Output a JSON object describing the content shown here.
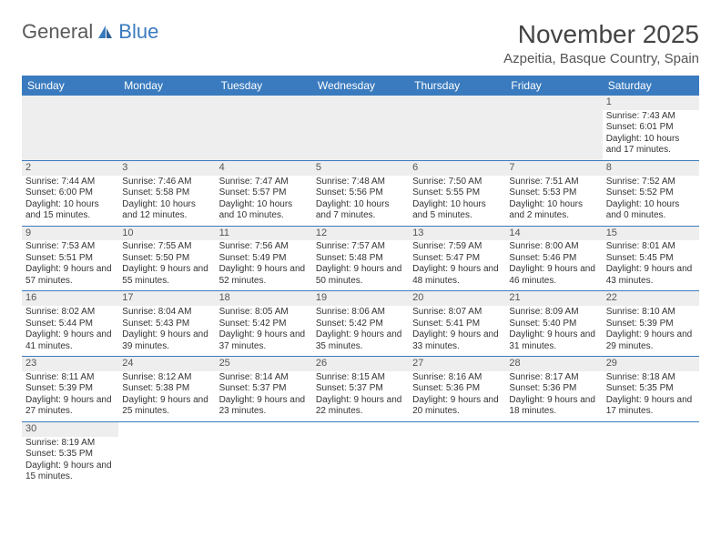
{
  "logo": {
    "text1": "General",
    "text2": "Blue"
  },
  "title": "November 2025",
  "location": "Azpeitia, Basque Country, Spain",
  "colors": {
    "headerBg": "#3a7bbf",
    "headerText": "#ffffff",
    "border": "#3a7bbf",
    "logoAccent": "#3a7bbf",
    "shade": "#eeeeee"
  },
  "weekdays": [
    "Sunday",
    "Monday",
    "Tuesday",
    "Wednesday",
    "Thursday",
    "Friday",
    "Saturday"
  ],
  "weeks": [
    [
      null,
      null,
      null,
      null,
      null,
      null,
      {
        "n": "1",
        "sunrise": "7:43 AM",
        "sunset": "6:01 PM",
        "daylight": "10 hours and 17 minutes."
      }
    ],
    [
      {
        "n": "2",
        "sunrise": "7:44 AM",
        "sunset": "6:00 PM",
        "daylight": "10 hours and 15 minutes."
      },
      {
        "n": "3",
        "sunrise": "7:46 AM",
        "sunset": "5:58 PM",
        "daylight": "10 hours and 12 minutes."
      },
      {
        "n": "4",
        "sunrise": "7:47 AM",
        "sunset": "5:57 PM",
        "daylight": "10 hours and 10 minutes."
      },
      {
        "n": "5",
        "sunrise": "7:48 AM",
        "sunset": "5:56 PM",
        "daylight": "10 hours and 7 minutes."
      },
      {
        "n": "6",
        "sunrise": "7:50 AM",
        "sunset": "5:55 PM",
        "daylight": "10 hours and 5 minutes."
      },
      {
        "n": "7",
        "sunrise": "7:51 AM",
        "sunset": "5:53 PM",
        "daylight": "10 hours and 2 minutes."
      },
      {
        "n": "8",
        "sunrise": "7:52 AM",
        "sunset": "5:52 PM",
        "daylight": "10 hours and 0 minutes."
      }
    ],
    [
      {
        "n": "9",
        "sunrise": "7:53 AM",
        "sunset": "5:51 PM",
        "daylight": "9 hours and 57 minutes."
      },
      {
        "n": "10",
        "sunrise": "7:55 AM",
        "sunset": "5:50 PM",
        "daylight": "9 hours and 55 minutes."
      },
      {
        "n": "11",
        "sunrise": "7:56 AM",
        "sunset": "5:49 PM",
        "daylight": "9 hours and 52 minutes."
      },
      {
        "n": "12",
        "sunrise": "7:57 AM",
        "sunset": "5:48 PM",
        "daylight": "9 hours and 50 minutes."
      },
      {
        "n": "13",
        "sunrise": "7:59 AM",
        "sunset": "5:47 PM",
        "daylight": "9 hours and 48 minutes."
      },
      {
        "n": "14",
        "sunrise": "8:00 AM",
        "sunset": "5:46 PM",
        "daylight": "9 hours and 46 minutes."
      },
      {
        "n": "15",
        "sunrise": "8:01 AM",
        "sunset": "5:45 PM",
        "daylight": "9 hours and 43 minutes."
      }
    ],
    [
      {
        "n": "16",
        "sunrise": "8:02 AM",
        "sunset": "5:44 PM",
        "daylight": "9 hours and 41 minutes."
      },
      {
        "n": "17",
        "sunrise": "8:04 AM",
        "sunset": "5:43 PM",
        "daylight": "9 hours and 39 minutes."
      },
      {
        "n": "18",
        "sunrise": "8:05 AM",
        "sunset": "5:42 PM",
        "daylight": "9 hours and 37 minutes."
      },
      {
        "n": "19",
        "sunrise": "8:06 AM",
        "sunset": "5:42 PM",
        "daylight": "9 hours and 35 minutes."
      },
      {
        "n": "20",
        "sunrise": "8:07 AM",
        "sunset": "5:41 PM",
        "daylight": "9 hours and 33 minutes."
      },
      {
        "n": "21",
        "sunrise": "8:09 AM",
        "sunset": "5:40 PM",
        "daylight": "9 hours and 31 minutes."
      },
      {
        "n": "22",
        "sunrise": "8:10 AM",
        "sunset": "5:39 PM",
        "daylight": "9 hours and 29 minutes."
      }
    ],
    [
      {
        "n": "23",
        "sunrise": "8:11 AM",
        "sunset": "5:39 PM",
        "daylight": "9 hours and 27 minutes."
      },
      {
        "n": "24",
        "sunrise": "8:12 AM",
        "sunset": "5:38 PM",
        "daylight": "9 hours and 25 minutes."
      },
      {
        "n": "25",
        "sunrise": "8:14 AM",
        "sunset": "5:37 PM",
        "daylight": "9 hours and 23 minutes."
      },
      {
        "n": "26",
        "sunrise": "8:15 AM",
        "sunset": "5:37 PM",
        "daylight": "9 hours and 22 minutes."
      },
      {
        "n": "27",
        "sunrise": "8:16 AM",
        "sunset": "5:36 PM",
        "daylight": "9 hours and 20 minutes."
      },
      {
        "n": "28",
        "sunrise": "8:17 AM",
        "sunset": "5:36 PM",
        "daylight": "9 hours and 18 minutes."
      },
      {
        "n": "29",
        "sunrise": "8:18 AM",
        "sunset": "5:35 PM",
        "daylight": "9 hours and 17 minutes."
      }
    ],
    [
      {
        "n": "30",
        "sunrise": "8:19 AM",
        "sunset": "5:35 PM",
        "daylight": "9 hours and 15 minutes."
      },
      null,
      null,
      null,
      null,
      null,
      null
    ]
  ],
  "labels": {
    "sunrise": "Sunrise:",
    "sunset": "Sunset:",
    "daylight": "Daylight:"
  }
}
